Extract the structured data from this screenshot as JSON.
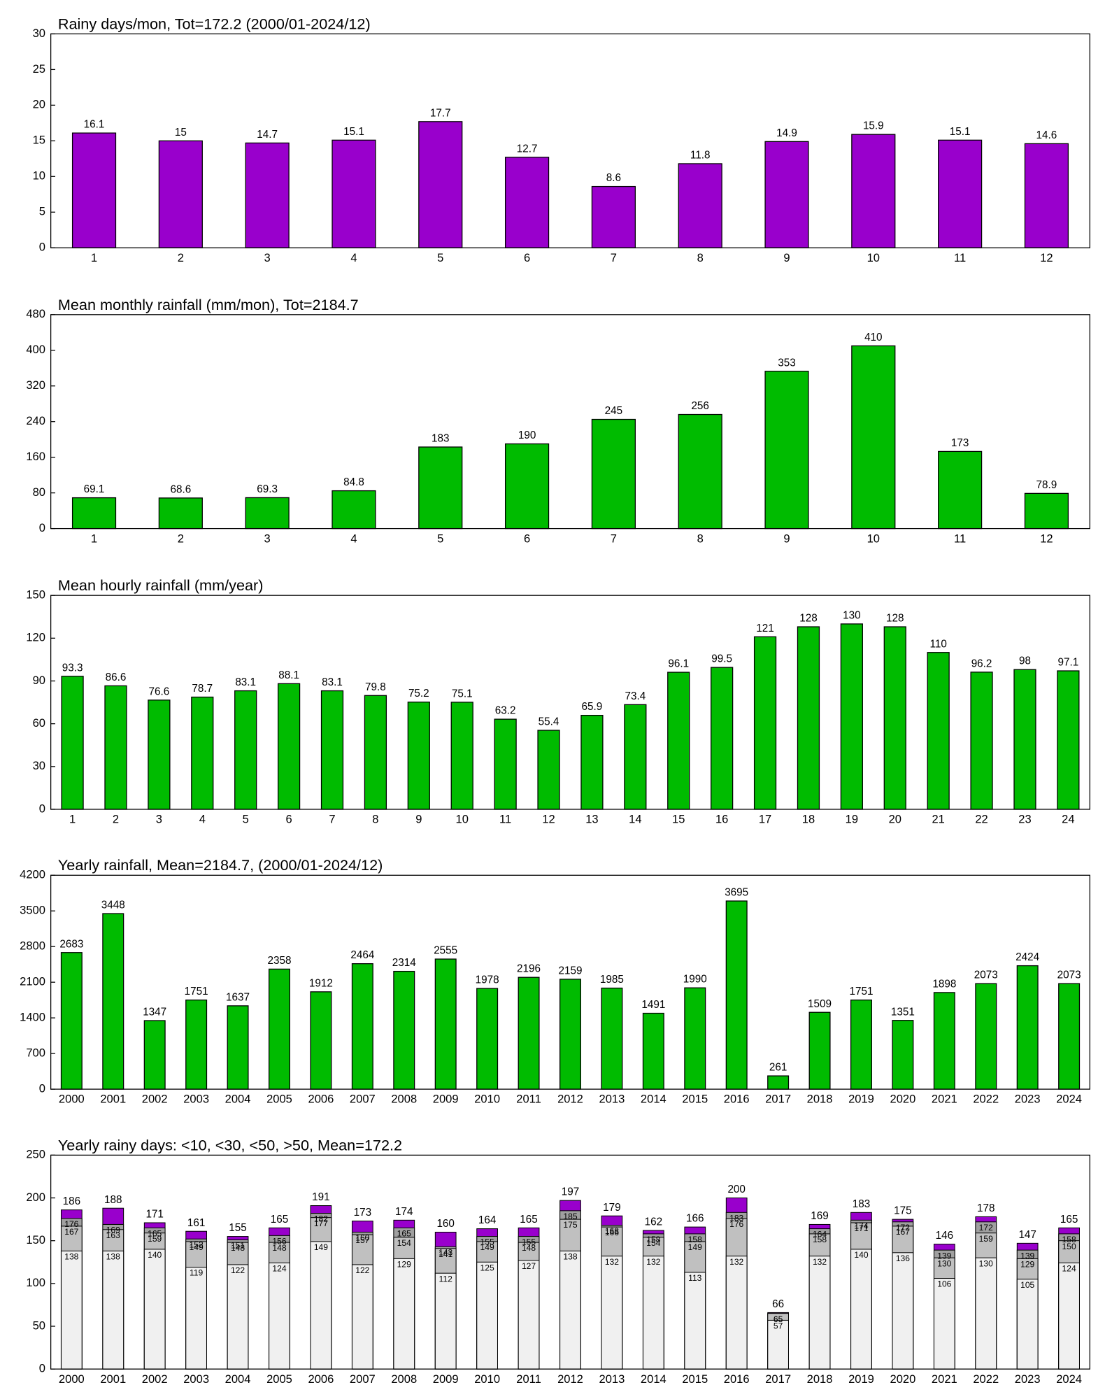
{
  "chart_data": [
    {
      "type": "bar",
      "title": "Rainy days/mon, Tot=172.2 (2000/01-2024/12)",
      "categories": [
        "1",
        "2",
        "3",
        "4",
        "5",
        "6",
        "7",
        "8",
        "9",
        "10",
        "11",
        "12"
      ],
      "values": [
        16.1,
        15,
        14.7,
        15.1,
        17.7,
        12.7,
        8.6,
        11.8,
        14.9,
        15.9,
        15.1,
        14.6
      ],
      "color": "#9900cc",
      "ylim": [
        0,
        30
      ],
      "yticks": [
        0,
        5,
        10,
        15,
        20,
        25,
        30
      ]
    },
    {
      "type": "bar",
      "title": "Mean monthly rainfall (mm/mon), Tot=2184.7",
      "categories": [
        "1",
        "2",
        "3",
        "4",
        "5",
        "6",
        "7",
        "8",
        "9",
        "10",
        "11",
        "12"
      ],
      "values": [
        69.1,
        68.6,
        69.3,
        84.8,
        183,
        190,
        245,
        256,
        353,
        410,
        173,
        78.9
      ],
      "color": "#00bb00",
      "ylim": [
        0,
        480
      ],
      "yticks": [
        0,
        80,
        160,
        240,
        320,
        400,
        480
      ]
    },
    {
      "type": "bar",
      "title": "Mean hourly rainfall (mm/year)",
      "categories": [
        "1",
        "2",
        "3",
        "4",
        "5",
        "6",
        "7",
        "8",
        "9",
        "10",
        "11",
        "12",
        "13",
        "14",
        "15",
        "16",
        "17",
        "18",
        "19",
        "20",
        "21",
        "22",
        "23",
        "24"
      ],
      "values": [
        93.3,
        86.6,
        76.6,
        78.7,
        83.1,
        88.1,
        83.1,
        79.8,
        75.2,
        75.1,
        63.2,
        55.4,
        65.9,
        73.4,
        96.1,
        99.5,
        121,
        128,
        130,
        128,
        110,
        96.2,
        98,
        97.1
      ],
      "color": "#00bb00",
      "ylim": [
        0,
        150
      ],
      "yticks": [
        0,
        30,
        60,
        90,
        120,
        150
      ]
    },
    {
      "type": "bar",
      "title": "Yearly rainfall, Mean=2184.7, (2000/01-2024/12)",
      "categories": [
        "2000",
        "2001",
        "2002",
        "2003",
        "2004",
        "2005",
        "2006",
        "2007",
        "2008",
        "2009",
        "2010",
        "2011",
        "2012",
        "2013",
        "2014",
        "2015",
        "2016",
        "2017",
        "2018",
        "2019",
        "2020",
        "2021",
        "2022",
        "2023",
        "2024"
      ],
      "values": [
        2683,
        3448,
        1347,
        1751,
        1637,
        2358,
        1912,
        2464,
        2314,
        2555,
        1978,
        2196,
        2159,
        1985,
        1491,
        1990,
        3695,
        261,
        1509,
        1751,
        1351,
        1898,
        2073,
        2424,
        2073
      ],
      "color": "#00bb00",
      "ylim": [
        0,
        4200
      ],
      "yticks": [
        0,
        700,
        1400,
        2100,
        2800,
        3500,
        4200
      ]
    },
    {
      "type": "overlapped_bar",
      "title": "Yearly rainy days: <10, <30, <50, >50, Mean=172.2",
      "categories": [
        "2000",
        "2001",
        "2002",
        "2003",
        "2004",
        "2005",
        "2006",
        "2007",
        "2008",
        "2009",
        "2010",
        "2011",
        "2012",
        "2013",
        "2014",
        "2015",
        "2016",
        "2017",
        "2018",
        "2019",
        "2020",
        "2021",
        "2022",
        "2023",
        "2024"
      ],
      "series": [
        {
          "color": "#f0f0f0",
          "values": [
            138,
            138,
            140,
            119,
            122,
            124,
            149,
            122,
            129,
            112,
            125,
            127,
            138,
            132,
            132,
            113,
            132,
            57,
            132,
            140,
            136,
            106,
            130,
            105,
            124
          ]
        },
        {
          "color": "#c0c0c0",
          "values": [
            167,
            163,
            159,
            149,
            148,
            148,
            177,
            157,
            154,
            141,
            149,
            148,
            175,
            166,
            154,
            149,
            176,
            65,
            158,
            171,
            167,
            130,
            159,
            129,
            150
          ]
        },
        {
          "color": "#a0a0a0",
          "values": [
            176,
            169,
            165,
            152,
            151,
            156,
            182,
            160,
            165,
            143,
            155,
            155,
            185,
            168,
            158,
            158,
            183,
            65,
            164,
            174,
            172,
            139,
            172,
            139,
            158
          ]
        },
        {
          "color": "#9900cc",
          "values": [
            186,
            188,
            171,
            161,
            155,
            165,
            191,
            173,
            174,
            160,
            164,
            165,
            197,
            179,
            162,
            166,
            200,
            66,
            169,
            183,
            175,
            146,
            178,
            147,
            165
          ]
        }
      ],
      "ylim": [
        0,
        250
      ],
      "yticks": [
        0,
        50,
        100,
        150,
        200,
        250
      ]
    }
  ]
}
